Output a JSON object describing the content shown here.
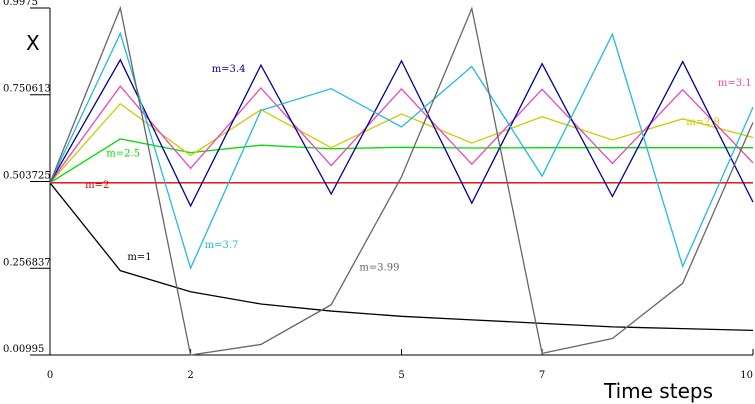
{
  "chart_data": {
    "type": "line",
    "xlabel": "Time steps",
    "ylabel": "X",
    "xlim": [
      0,
      10
    ],
    "ylim": [
      0.00995,
      0.9975
    ],
    "grid": false,
    "x_ticks": [
      0,
      2,
      5,
      7,
      10
    ],
    "y_ticks": [
      0.00995,
      0.256837,
      0.503725,
      0.750613,
      0.9975
    ],
    "x_tick_labels": [
      "0",
      "2",
      "5",
      "7",
      "10"
    ],
    "y_tick_labels": [
      "0.00995",
      "0.256837",
      "0.503725",
      "0.750613",
      "0.9975"
    ],
    "x": [
      0,
      1,
      2,
      3,
      4,
      5,
      6,
      7,
      8,
      9,
      10
    ],
    "series": [
      {
        "name": "m=1",
        "color": "#000000",
        "label_at": [
          1.1,
          0.28
        ],
        "values": [
          0.5,
          0.25,
          0.19,
          0.155,
          0.135,
          0.12,
          0.11,
          0.1,
          0.09,
          0.085,
          0.08
        ]
      },
      {
        "name": "m=2",
        "color": "#dd0000",
        "label_at": [
          0.5,
          0.485
        ],
        "values": [
          0.5,
          0.5,
          0.5,
          0.5,
          0.5,
          0.5,
          0.5,
          0.5,
          0.5,
          0.5,
          0.5
        ]
      },
      {
        "name": "m=2.5",
        "color": "#00dd00",
        "label_at": [
          0.8,
          0.575
        ],
        "values": [
          0.5,
          0.625,
          0.586,
          0.607,
          0.597,
          0.601,
          0.599,
          0.6,
          0.6,
          0.6,
          0.6
        ]
      },
      {
        "name": "m=2.9",
        "color": "#cccc00",
        "label_at": [
          9.05,
          0.665
        ],
        "values": [
          0.5,
          0.725,
          0.578,
          0.708,
          0.6,
          0.696,
          0.613,
          0.688,
          0.622,
          0.682,
          0.629
        ]
      },
      {
        "name": "m=3.1",
        "color": "#ee44bb",
        "label_at": [
          9.5,
          0.775
        ],
        "values": [
          0.5,
          0.775,
          0.541,
          0.77,
          0.549,
          0.767,
          0.553,
          0.766,
          0.555,
          0.765,
          0.557
        ]
      },
      {
        "name": "m=3.4",
        "color": "#000099",
        "label_at": [
          2.3,
          0.815
        ],
        "values": [
          0.5,
          0.85,
          0.434,
          0.835,
          0.468,
          0.847,
          0.442,
          0.839,
          0.461,
          0.845,
          0.445
        ]
      },
      {
        "name": "m=3.7",
        "color": "#22bbdd",
        "label_at": [
          2.2,
          0.315
        ],
        "values": [
          0.5,
          0.925,
          0.257,
          0.706,
          0.768,
          0.659,
          0.831,
          0.519,
          0.923,
          0.262,
          0.715
        ]
      },
      {
        "name": "m=3.99",
        "color": "#666666",
        "label_at": [
          4.4,
          0.25
        ],
        "values": [
          0.5,
          0.9975,
          0.01,
          0.04,
          0.153,
          0.517,
          0.996,
          0.0145,
          0.057,
          0.214,
          0.672
        ]
      }
    ]
  }
}
